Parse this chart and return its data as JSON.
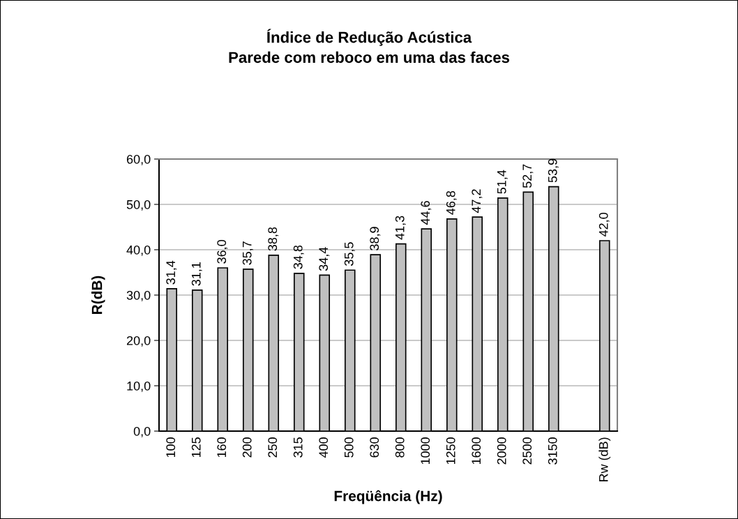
{
  "chart_data": {
    "type": "bar",
    "title": "Índice de Redução Acústica\nParede com reboco em uma das faces",
    "xlabel": "Freqüência (Hz)",
    "ylabel": "R(dB)",
    "categories": [
      "100",
      "125",
      "160",
      "200",
      "250",
      "315",
      "400",
      "500",
      "630",
      "800",
      "1000",
      "1250",
      "1600",
      "2000",
      "2500",
      "3150",
      null,
      "Rw (dB)"
    ],
    "values": [
      31.4,
      31.1,
      36.0,
      35.7,
      38.8,
      34.8,
      34.4,
      35.5,
      38.9,
      41.3,
      44.6,
      46.8,
      47.2,
      51.4,
      52.7,
      53.9,
      null,
      42.0
    ],
    "value_labels": [
      "31,4",
      "31,1",
      "36,0",
      "35,7",
      "38,8",
      "34,8",
      "34,4",
      "35,5",
      "38,9",
      "41,3",
      "44,6",
      "46,8",
      "47,2",
      "51,4",
      "52,7",
      "53,9",
      null,
      "42,0"
    ],
    "color": "#c0c0c0",
    "ylim": [
      0,
      60
    ],
    "yticks": [
      {
        "value": 0,
        "label": "0,0"
      },
      {
        "value": 10,
        "label": "10,0"
      },
      {
        "value": 20,
        "label": "20,0"
      },
      {
        "value": 30,
        "label": "30,0"
      },
      {
        "value": 40,
        "label": "40,0"
      },
      {
        "value": 50,
        "label": "50,0"
      },
      {
        "value": 60,
        "label": "60,0"
      }
    ],
    "grid": "y",
    "legend": false
  }
}
